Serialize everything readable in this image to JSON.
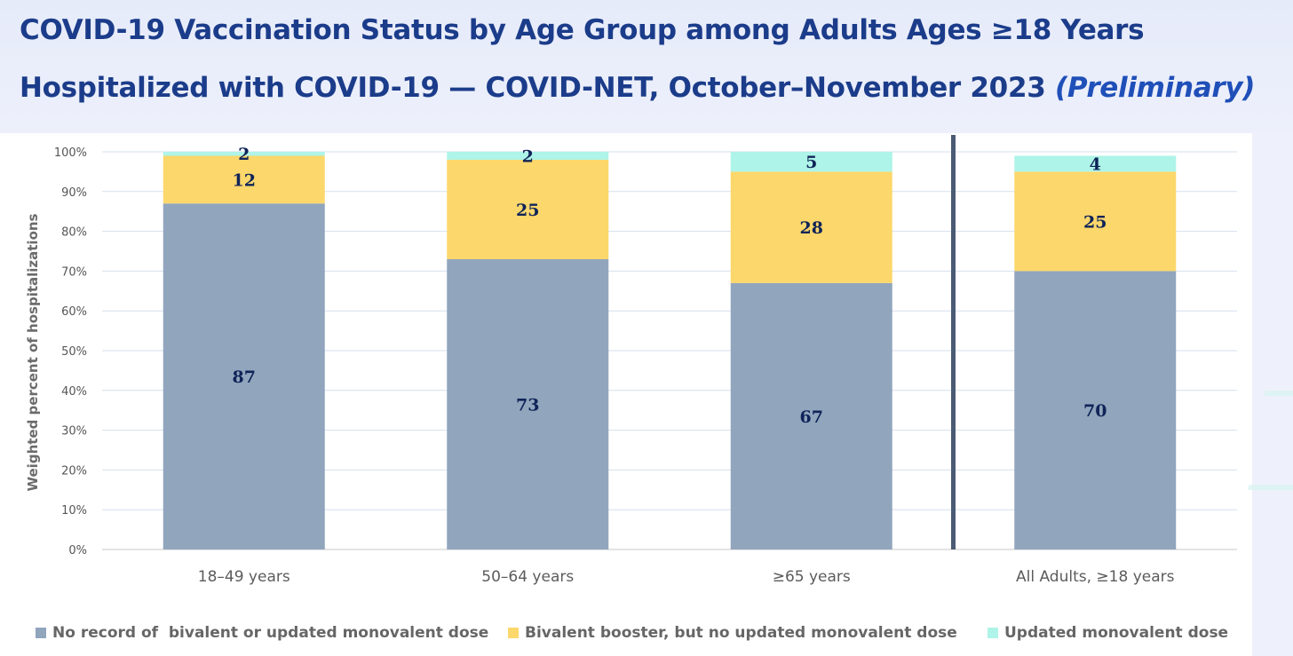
{
  "title": {
    "line1": "COVID-19 Vaccination Status by Age Group among Adults Ages ≥18 Years",
    "line2_main": "Hospitalized with COVID-19 — COVID-NET, October–November 2023 ",
    "line2_italic": "(Preliminary)"
  },
  "colors": {
    "no_record": "#91a5bd",
    "bivalent": "#fcd76b",
    "updated": "#aef4e8",
    "divider": "#4b5b75",
    "label": "#0f2458"
  },
  "chart_data": {
    "type": "bar",
    "stacked": true,
    "categories": [
      "18–49 years",
      "50–64 years",
      "≥65 years",
      "All Adults, ≥18 years"
    ],
    "series": [
      {
        "name": "No record of  bivalent or updated monovalent dose",
        "values": [
          87,
          73,
          67,
          70
        ]
      },
      {
        "name": "Bivalent booster, but no updated monovalent dose",
        "values": [
          12,
          25,
          28,
          25
        ]
      },
      {
        "name": "Updated monovalent dose",
        "values": [
          2,
          2,
          5,
          4
        ]
      }
    ],
    "ylabel": "Weighted percent of hospitalizations",
    "xlabel": "",
    "ylim": [
      0,
      100
    ],
    "yticks": [
      "0%",
      "10%",
      "20%",
      "30%",
      "40%",
      "50%",
      "60%",
      "70%",
      "80%",
      "90%",
      "100%"
    ],
    "grid": true,
    "legend": "bottom",
    "divider_before_category": 3
  }
}
